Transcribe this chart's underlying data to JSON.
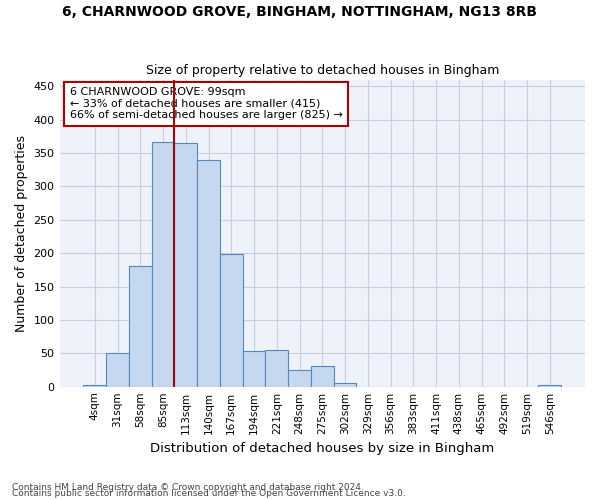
{
  "title_line1": "6, CHARNWOOD GROVE, BINGHAM, NOTTINGHAM, NG13 8RB",
  "title_line2": "Size of property relative to detached houses in Bingham",
  "xlabel": "Distribution of detached houses by size in Bingham",
  "ylabel": "Number of detached properties",
  "bin_labels": [
    "4sqm",
    "31sqm",
    "58sqm",
    "85sqm",
    "113sqm",
    "140sqm",
    "167sqm",
    "194sqm",
    "221sqm",
    "248sqm",
    "275sqm",
    "302sqm",
    "329sqm",
    "356sqm",
    "383sqm",
    "411sqm",
    "438sqm",
    "465sqm",
    "492sqm",
    "519sqm",
    "546sqm"
  ],
  "bar_values": [
    3,
    50,
    181,
    367,
    365,
    340,
    199,
    54,
    55,
    25,
    31,
    6,
    0,
    0,
    0,
    0,
    0,
    0,
    0,
    0,
    3
  ],
  "bar_color": "#c5d8f0",
  "bar_edge_color": "#5588bb",
  "grid_color": "#c8d0e0",
  "background_color": "#eef2fa",
  "vline_x_idx": 3,
  "vline_color": "#aa0000",
  "annotation_text": "6 CHARNWOOD GROVE: 99sqm\n← 33% of detached houses are smaller (415)\n66% of semi-detached houses are larger (825) →",
  "annotation_box_color": "#ffffff",
  "annotation_box_edge": "#aa0000",
  "ylim": [
    0,
    460
  ],
  "yticks": [
    0,
    50,
    100,
    150,
    200,
    250,
    300,
    350,
    400,
    450
  ],
  "footnote1": "Contains HM Land Registry data © Crown copyright and database right 2024.",
  "footnote2": "Contains public sector information licensed under the Open Government Licence v3.0."
}
